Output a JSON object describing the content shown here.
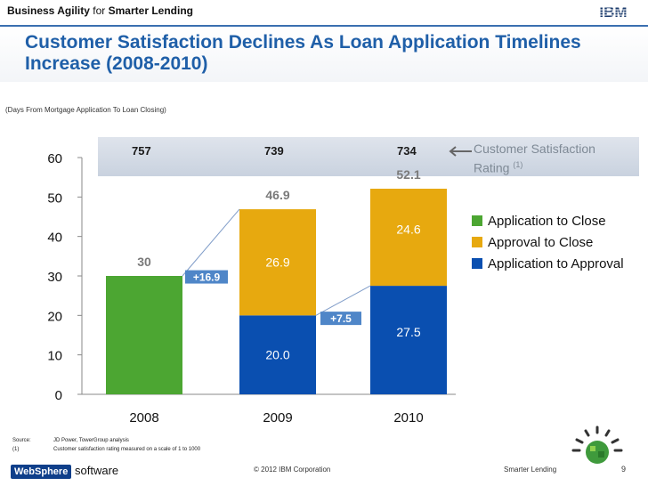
{
  "header": {
    "brand_bold": "Business Agility",
    "brand_for": "for",
    "brand_tail": "Smarter Lending",
    "logo_text": "IBM"
  },
  "title": "Customer Satisfaction Declines As Loan Application Timelines Increase (2008-2010)",
  "subtitle": "(Days From Mortgage  Application To Loan Closing)",
  "ratings": {
    "callout": "Customer Satisfaction Rating",
    "callout_note": "(1)",
    "values": [
      "757",
      "739",
      "734"
    ]
  },
  "chart_data": {
    "type": "bar",
    "stacked": true,
    "categories": [
      "2008",
      "2009",
      "2010"
    ],
    "series": [
      {
        "name": "Application to Close",
        "values": [
          30,
          null,
          null
        ],
        "color": "#4ca632"
      },
      {
        "name": "Application to Approval",
        "values": [
          null,
          20.0,
          27.5
        ],
        "color": "#0a4fb0"
      },
      {
        "name": "Approval to Close",
        "values": [
          null,
          26.9,
          24.6
        ],
        "color": "#e7a90f"
      }
    ],
    "data_labels": {
      "totals": [
        "30",
        "46.9",
        "52.1"
      ],
      "segments_2009": [
        "20.0",
        "26.9"
      ],
      "segments_2010": [
        "27.5",
        "24.6"
      ]
    },
    "annotations": [
      "+16.9",
      "+7.5"
    ],
    "ylim": [
      0,
      60
    ],
    "yticks": [
      0,
      10,
      20,
      30,
      40,
      50,
      60
    ],
    "grid": false,
    "legend_position": "right",
    "legend_order": [
      "Application to Close",
      "Approval to Close",
      "Application to Approval"
    ]
  },
  "footnotes": [
    {
      "key": "Source:",
      "text": "JD Power, TowerGroup analysis"
    },
    {
      "key": "(1)",
      "text": "Customer satisfaction rating measured on a scale of 1 to 1000"
    }
  ],
  "footer": {
    "brand_box": "WebSphere",
    "brand_word": "software",
    "copyright": "© 2012 IBM Corporation",
    "right_label": "Smarter Lending",
    "page": "9"
  }
}
